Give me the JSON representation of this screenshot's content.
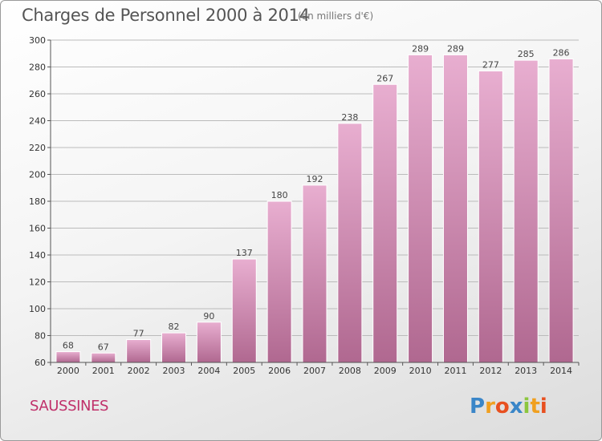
{
  "header": {
    "title": "Charges de Personnel 2000 à 2014",
    "subtitle": "(en milliers d'€)"
  },
  "footer": {
    "place": "SAUSSINES",
    "logo_text": "Proxiti"
  },
  "colors": {
    "bar_light": "#e8aed0",
    "bar_dark": "#b06890",
    "accent": "#c0306a"
  },
  "chart_data": {
    "type": "bar",
    "title": "Charges de Personnel 2000 à 2014",
    "subtitle": "(en milliers d'€)",
    "categories": [
      "2000",
      "2001",
      "2002",
      "2003",
      "2004",
      "2005",
      "2006",
      "2007",
      "2008",
      "2009",
      "2010",
      "2011",
      "2012",
      "2013",
      "2014"
    ],
    "values": [
      68,
      67,
      77,
      82,
      90,
      137,
      180,
      192,
      238,
      267,
      289,
      289,
      277,
      285,
      286
    ],
    "ylim": [
      60,
      300
    ],
    "yticks": [
      60,
      80,
      100,
      120,
      140,
      160,
      180,
      200,
      220,
      240,
      260,
      280,
      300
    ],
    "grid": true,
    "xlabel": "",
    "ylabel": ""
  }
}
